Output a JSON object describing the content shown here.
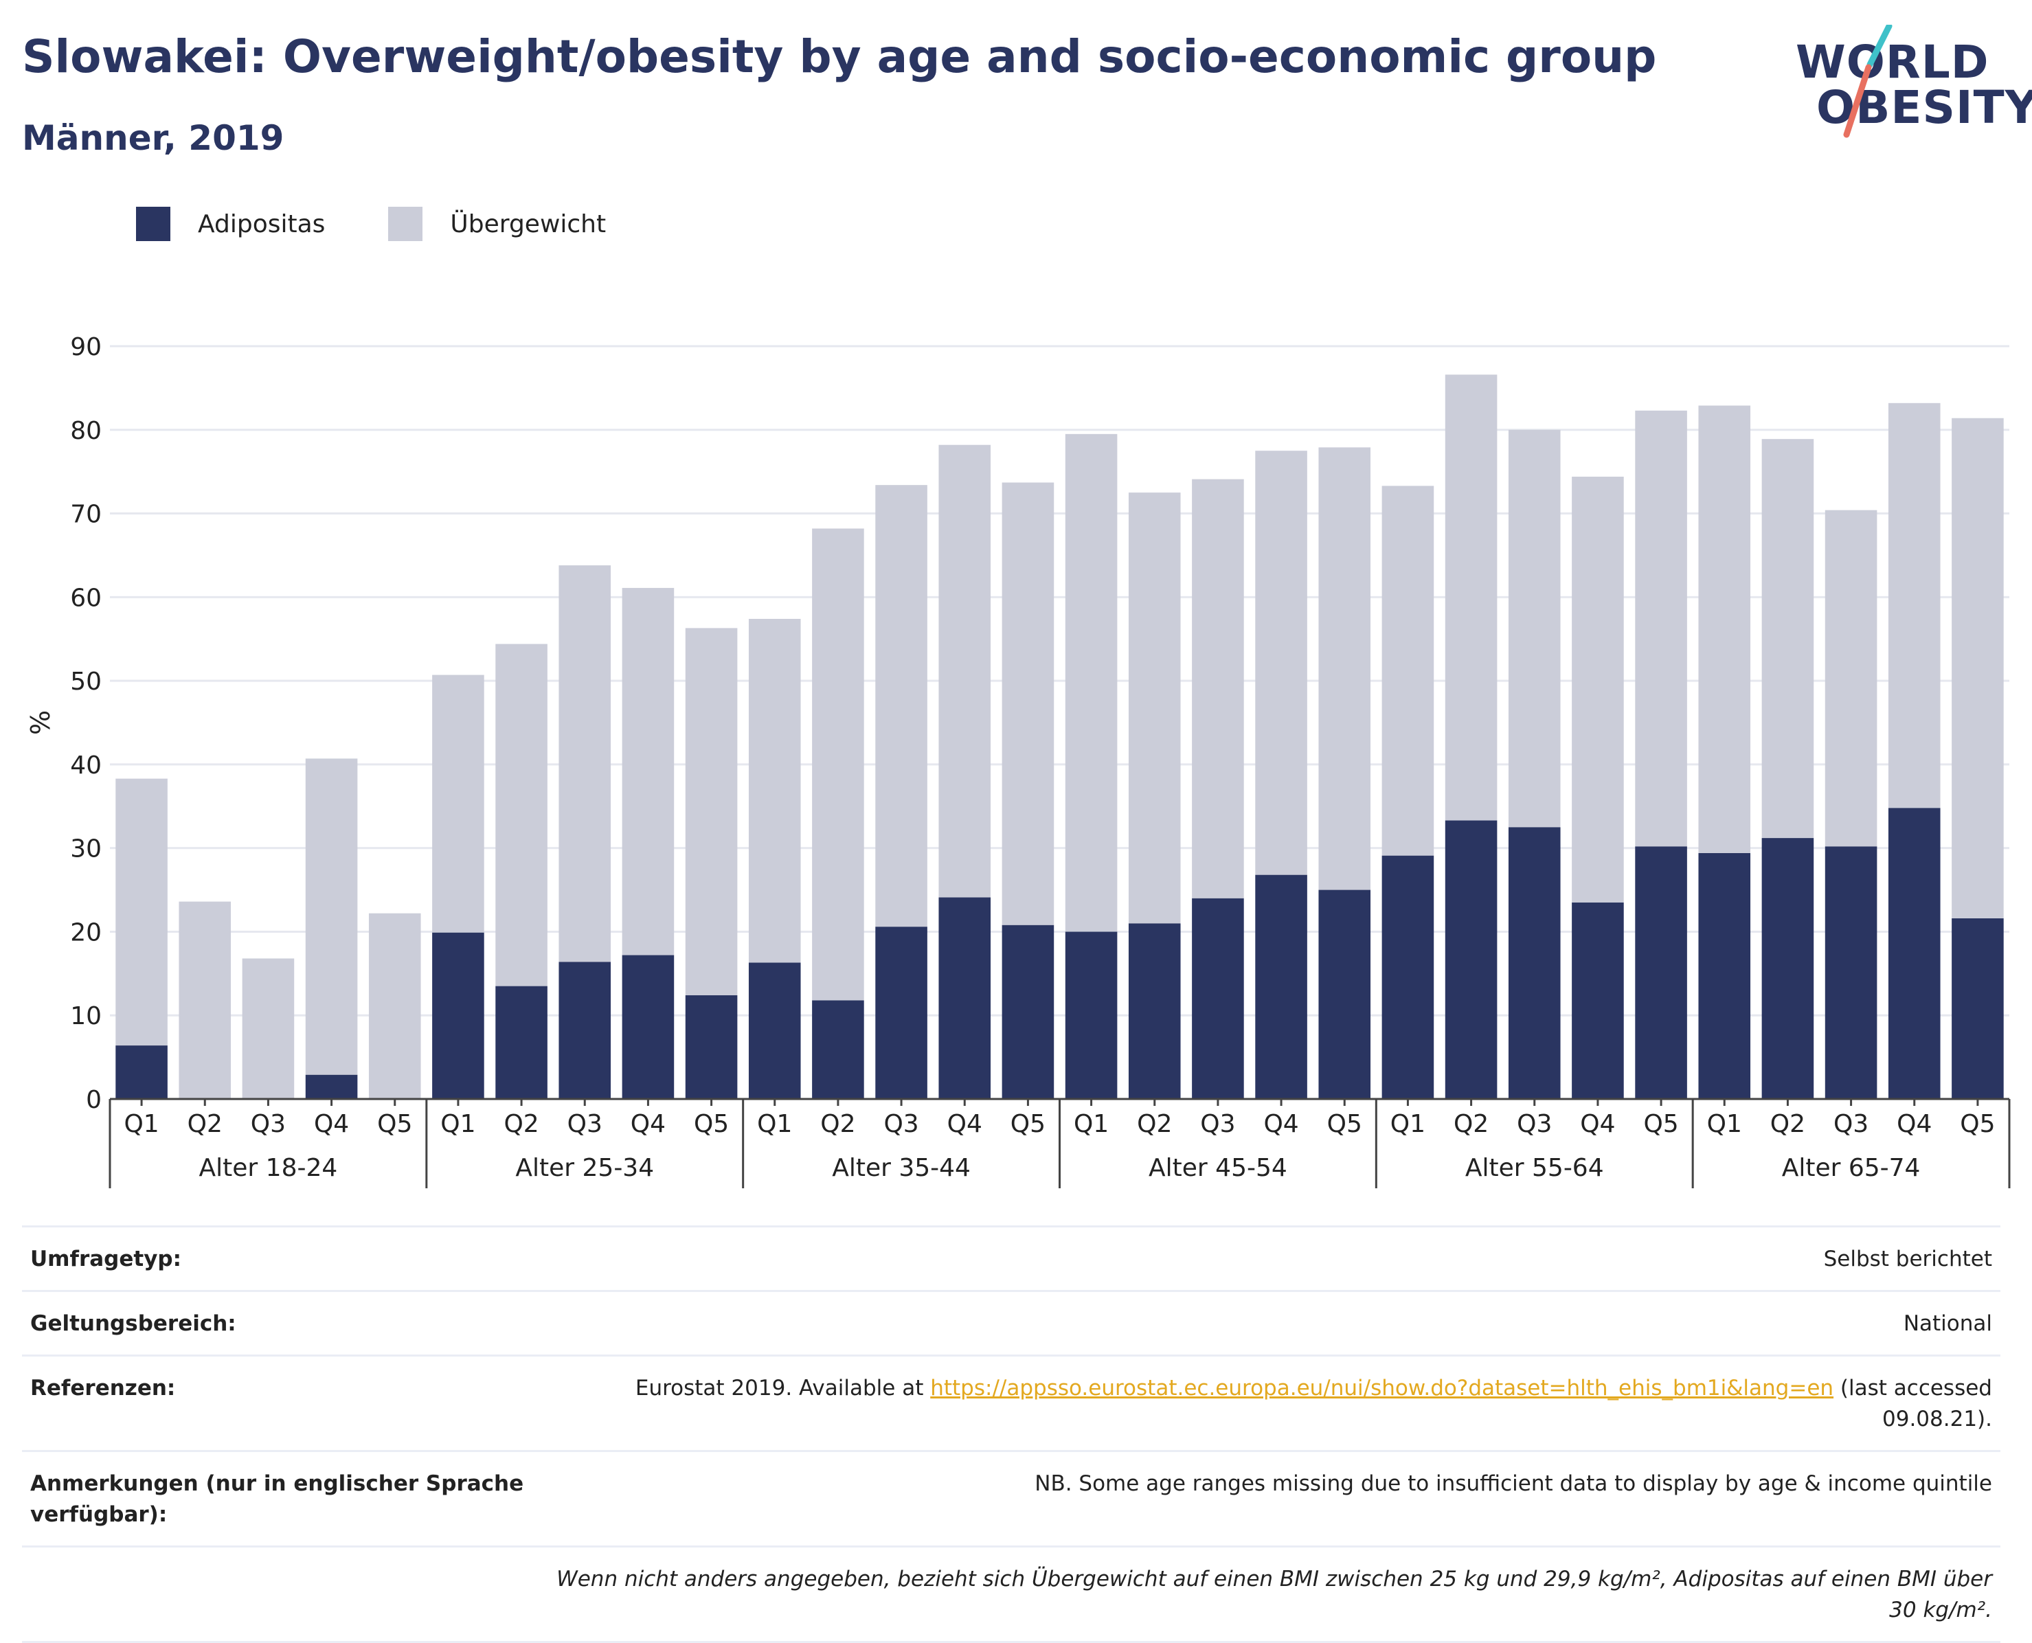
{
  "header": {
    "title": "Slowakei: Overweight/obesity by age and socio-economic group",
    "subtitle": "Männer, 2019"
  },
  "logo": {
    "line1": "WORLD",
    "line2": "OBESITY"
  },
  "colors": {
    "obesity": "#2a3561",
    "overweight": "#cbcdd9",
    "title": "#2a3561",
    "link": "#e3a81f"
  },
  "chart_data": {
    "type": "bar",
    "stacked": true,
    "ylabel": "%",
    "ylim": [
      0,
      90
    ],
    "yticks": [
      0,
      10,
      20,
      30,
      40,
      50,
      60,
      70,
      80,
      90
    ],
    "grid": true,
    "legend_position": "top-left",
    "groups": [
      {
        "label": "Alter 18-24",
        "categories": [
          "Q1",
          "Q2",
          "Q3",
          "Q4",
          "Q5"
        ]
      },
      {
        "label": "Alter 25-34",
        "categories": [
          "Q1",
          "Q2",
          "Q3",
          "Q4",
          "Q5"
        ]
      },
      {
        "label": "Alter 35-44",
        "categories": [
          "Q1",
          "Q2",
          "Q3",
          "Q4",
          "Q5"
        ]
      },
      {
        "label": "Alter 45-54",
        "categories": [
          "Q1",
          "Q2",
          "Q3",
          "Q4",
          "Q5"
        ]
      },
      {
        "label": "Alter 55-64",
        "categories": [
          "Q1",
          "Q2",
          "Q3",
          "Q4",
          "Q5"
        ]
      },
      {
        "label": "Alter 65-74",
        "categories": [
          "Q1",
          "Q2",
          "Q3",
          "Q4",
          "Q5"
        ]
      }
    ],
    "series": [
      {
        "name": "Adipositas",
        "values": [
          6.4,
          0,
          0,
          2.9,
          0,
          19.9,
          13.5,
          16.4,
          17.2,
          12.4,
          16.3,
          11.8,
          20.6,
          24.1,
          20.8,
          20.0,
          21.0,
          24.0,
          26.8,
          25.0,
          29.1,
          33.3,
          32.5,
          23.5,
          30.2,
          29.4,
          31.2,
          30.2,
          34.8,
          21.6
        ]
      },
      {
        "name": "Übergewicht",
        "values": [
          31.9,
          23.6,
          16.8,
          37.8,
          22.2,
          30.8,
          40.9,
          47.4,
          43.9,
          43.9,
          41.1,
          56.4,
          52.8,
          54.1,
          52.9,
          59.5,
          51.5,
          50.1,
          50.7,
          52.9,
          44.2,
          53.3,
          47.5,
          50.9,
          52.1,
          53.5,
          47.7,
          40.2,
          48.4,
          59.8
        ]
      }
    ]
  },
  "meta": {
    "rows": [
      {
        "key": "Umfragetyp:",
        "value": "Selbst berichtet"
      },
      {
        "key": "Geltungsbereich:",
        "value": "National"
      },
      {
        "key": "Referenzen:",
        "value_before": "Eurostat 2019. Available at ",
        "link": "https://appsso.eurostat.ec.europa.eu/nui/show.do?dataset=hlth_ehis_bm1i&lang=en",
        "value_after": " (last accessed 09.08.21)."
      },
      {
        "key": "Anmerkungen (nur in englischer Sprache verfügbar):",
        "value": "NB. Some age ranges missing due to insufficient data to display by age & income quintile"
      }
    ],
    "footnote": "Wenn nicht anders angegeben, bezieht sich Übergewicht auf einen BMI zwischen 25 kg und 29,9 kg/m², Adipositas auf einen BMI über 30 kg/m²."
  }
}
